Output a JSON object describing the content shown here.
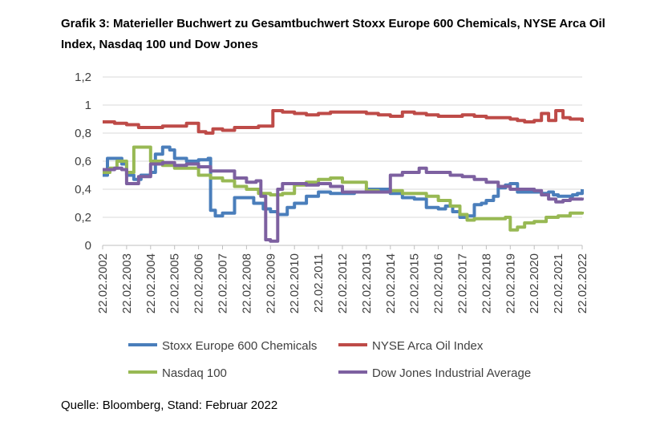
{
  "title": "Grafik 3: Materieller Buchwert zu Gesamtbuchwert Stoxx Europe 600 Chemicals, NYSE Arca Oil Index, Nasdaq 100 und Dow Jones",
  "source": "Quelle: Bloomberg, Stand: Februar 2022",
  "chart_data": {
    "type": "line",
    "title": "Grafik 3: Materieller Buchwert zu Gesamtbuchwert Stoxx Europe 600 Chemicals, NYSE Arca Oil Index, Nasdaq 100 und Dow Jones",
    "xlabel": "",
    "ylabel": "",
    "ylim": [
      0,
      1.2
    ],
    "yticks": [
      "0",
      "0,2",
      "0,4",
      "0,6",
      "0,8",
      "1",
      "1,2"
    ],
    "xticks": [
      "22.02.2002",
      "22.02.2003",
      "22.02.2004",
      "22.02.2005",
      "22.02.2006",
      "22.02.2007",
      "22.02.2008",
      "22.02.2009",
      "22.02.2010",
      "22.02.2011",
      "22.02.2012",
      "22.02.2013",
      "22.02.2014",
      "22.02.2015",
      "22.02.2016",
      "22.02.2017",
      "22.02.2018",
      "22.02.2019",
      "22.02.2020",
      "22.02.2021",
      "22.02.2022"
    ],
    "xlim": [
      2002.0,
      2022.0
    ],
    "grid": true,
    "legend_position": "bottom",
    "series": [
      {
        "name": "Stoxx Europe 600 Chemicals",
        "color": "#4a7ebb",
        "x": [
          2002.0,
          2002.2,
          2002.5,
          2002.8,
          2003.0,
          2003.3,
          2003.6,
          2004.0,
          2004.2,
          2004.5,
          2004.8,
          2005.0,
          2005.5,
          2006.0,
          2006.4,
          2006.5,
          2006.7,
          2007.0,
          2007.5,
          2008.0,
          2008.3,
          2008.7,
          2009.0,
          2009.3,
          2009.7,
          2010.0,
          2010.5,
          2011.0,
          2011.5,
          2012.0,
          2012.5,
          2013.0,
          2013.5,
          2014.0,
          2014.5,
          2015.0,
          2015.5,
          2016.0,
          2016.3,
          2016.6,
          2016.9,
          2017.2,
          2017.5,
          2017.8,
          2018.0,
          2018.3,
          2018.5,
          2018.8,
          2019.0,
          2019.3,
          2019.6,
          2020.0,
          2020.3,
          2020.6,
          2020.8,
          2021.0,
          2021.3,
          2021.6,
          2021.8,
          2022.0
        ],
        "values": [
          0.5,
          0.62,
          0.62,
          0.58,
          0.5,
          0.47,
          0.5,
          0.52,
          0.65,
          0.7,
          0.68,
          0.62,
          0.6,
          0.61,
          0.62,
          0.25,
          0.21,
          0.23,
          0.34,
          0.34,
          0.3,
          0.26,
          0.24,
          0.22,
          0.27,
          0.3,
          0.35,
          0.38,
          0.37,
          0.37,
          0.38,
          0.4,
          0.4,
          0.37,
          0.34,
          0.33,
          0.27,
          0.26,
          0.28,
          0.24,
          0.2,
          0.21,
          0.29,
          0.3,
          0.32,
          0.35,
          0.41,
          0.43,
          0.44,
          0.38,
          0.38,
          0.38,
          0.37,
          0.38,
          0.36,
          0.35,
          0.35,
          0.36,
          0.37,
          0.4
        ]
      },
      {
        "name": "NYSE Arca Oil Index",
        "color": "#be4b48",
        "x": [
          2002.0,
          2002.5,
          2003.0,
          2003.5,
          2004.0,
          2004.5,
          2005.0,
          2005.5,
          2006.0,
          2006.3,
          2006.6,
          2007.0,
          2007.5,
          2008.0,
          2008.5,
          2009.0,
          2009.1,
          2009.5,
          2010.0,
          2010.5,
          2011.0,
          2011.5,
          2012.0,
          2012.5,
          2013.0,
          2013.5,
          2014.0,
          2014.5,
          2015.0,
          2015.5,
          2016.0,
          2016.5,
          2017.0,
          2017.5,
          2018.0,
          2018.5,
          2019.0,
          2019.3,
          2019.6,
          2020.0,
          2020.3,
          2020.6,
          2020.9,
          2021.2,
          2021.5,
          2022.0
        ],
        "values": [
          0.88,
          0.87,
          0.86,
          0.84,
          0.84,
          0.85,
          0.85,
          0.87,
          0.81,
          0.8,
          0.83,
          0.82,
          0.84,
          0.84,
          0.85,
          0.85,
          0.96,
          0.95,
          0.94,
          0.93,
          0.94,
          0.95,
          0.95,
          0.95,
          0.94,
          0.93,
          0.92,
          0.95,
          0.94,
          0.93,
          0.92,
          0.92,
          0.93,
          0.92,
          0.91,
          0.91,
          0.9,
          0.89,
          0.88,
          0.89,
          0.94,
          0.89,
          0.96,
          0.91,
          0.9,
          0.88
        ]
      },
      {
        "name": "Nasdaq 100",
        "color": "#98b954",
        "x": [
          2002.0,
          2002.3,
          2002.6,
          2003.0,
          2003.3,
          2003.6,
          2004.0,
          2004.5,
          2005.0,
          2005.5,
          2006.0,
          2006.5,
          2007.0,
          2007.5,
          2008.0,
          2008.5,
          2009.0,
          2009.5,
          2010.0,
          2010.5,
          2011.0,
          2011.5,
          2012.0,
          2012.5,
          2013.0,
          2013.5,
          2014.0,
          2014.5,
          2015.0,
          2015.5,
          2016.0,
          2016.5,
          2016.9,
          2017.2,
          2017.5,
          2018.0,
          2018.5,
          2018.8,
          2019.0,
          2019.3,
          2019.6,
          2020.0,
          2020.5,
          2021.0,
          2021.5,
          2022.0
        ],
        "values": [
          0.52,
          0.55,
          0.6,
          0.52,
          0.7,
          0.7,
          0.6,
          0.57,
          0.55,
          0.55,
          0.5,
          0.48,
          0.46,
          0.42,
          0.4,
          0.37,
          0.36,
          0.37,
          0.43,
          0.45,
          0.47,
          0.48,
          0.45,
          0.45,
          0.39,
          0.38,
          0.39,
          0.37,
          0.37,
          0.35,
          0.32,
          0.28,
          0.22,
          0.18,
          0.19,
          0.19,
          0.19,
          0.2,
          0.11,
          0.13,
          0.16,
          0.17,
          0.2,
          0.21,
          0.23,
          0.24
        ]
      },
      {
        "name": "Dow Jones Industrial Average",
        "color": "#7d60a0",
        "x": [
          2002.0,
          2002.5,
          2002.8,
          2003.0,
          2003.5,
          2004.0,
          2004.5,
          2005.0,
          2005.5,
          2006.0,
          2006.5,
          2007.0,
          2007.5,
          2008.0,
          2008.4,
          2008.6,
          2008.8,
          2009.0,
          2009.3,
          2009.5,
          2010.0,
          2010.5,
          2011.0,
          2011.5,
          2012.0,
          2012.5,
          2013.0,
          2013.5,
          2014.0,
          2014.5,
          2015.0,
          2015.2,
          2015.5,
          2016.0,
          2016.5,
          2017.0,
          2017.5,
          2018.0,
          2018.5,
          2019.0,
          2019.5,
          2020.0,
          2020.3,
          2020.6,
          2020.9,
          2021.2,
          2021.5,
          2022.0
        ],
        "values": [
          0.54,
          0.55,
          0.54,
          0.44,
          0.49,
          0.58,
          0.59,
          0.57,
          0.58,
          0.56,
          0.53,
          0.53,
          0.48,
          0.45,
          0.46,
          0.35,
          0.04,
          0.03,
          0.4,
          0.44,
          0.44,
          0.43,
          0.44,
          0.42,
          0.38,
          0.38,
          0.38,
          0.38,
          0.5,
          0.52,
          0.52,
          0.55,
          0.52,
          0.52,
          0.5,
          0.49,
          0.47,
          0.45,
          0.42,
          0.4,
          0.4,
          0.39,
          0.36,
          0.33,
          0.31,
          0.32,
          0.33,
          0.34
        ]
      }
    ]
  }
}
